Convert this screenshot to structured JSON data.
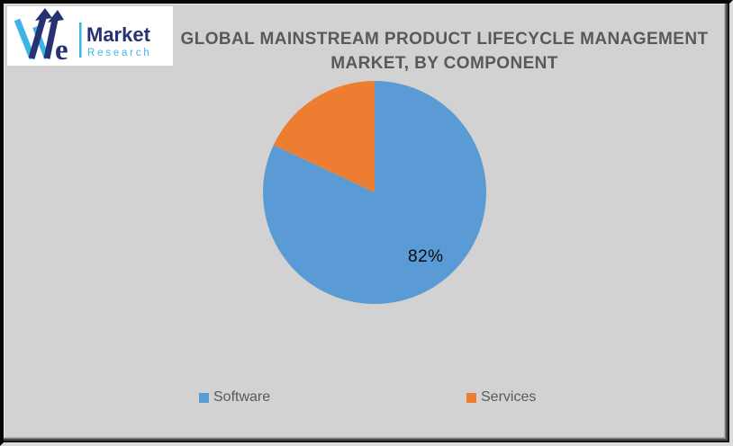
{
  "logo": {
    "we_letter": "e",
    "brand_name": "Market",
    "brand_subname": "Research",
    "colors": {
      "navy": "#273272",
      "light_blue": "#3cb4e5"
    }
  },
  "chart_data": {
    "type": "pie",
    "title": "GLOBAL MAINSTREAM PRODUCT LIFECYCLE MANAGEMENT MARKET, BY COMPONENT",
    "title_lines": [
      "GLOBAL MAINSTREAM PRODUCT LIFECYCLE MANAGEMENT",
      "MARKET, BY COMPONENT"
    ],
    "categories": [
      "Software",
      "Services"
    ],
    "values": [
      82,
      18
    ],
    "slices": [
      {
        "name": "Software",
        "value": 82,
        "color": "#5B9BD5",
        "data_label": "82%"
      },
      {
        "name": "Services",
        "value": 18,
        "color": "#ED7D31",
        "data_label": ""
      }
    ],
    "data_label": "82%",
    "start_angle": "top-clockwise",
    "legend_position": "bottom",
    "background": "#d2d2d2",
    "title_color": "#595959"
  }
}
